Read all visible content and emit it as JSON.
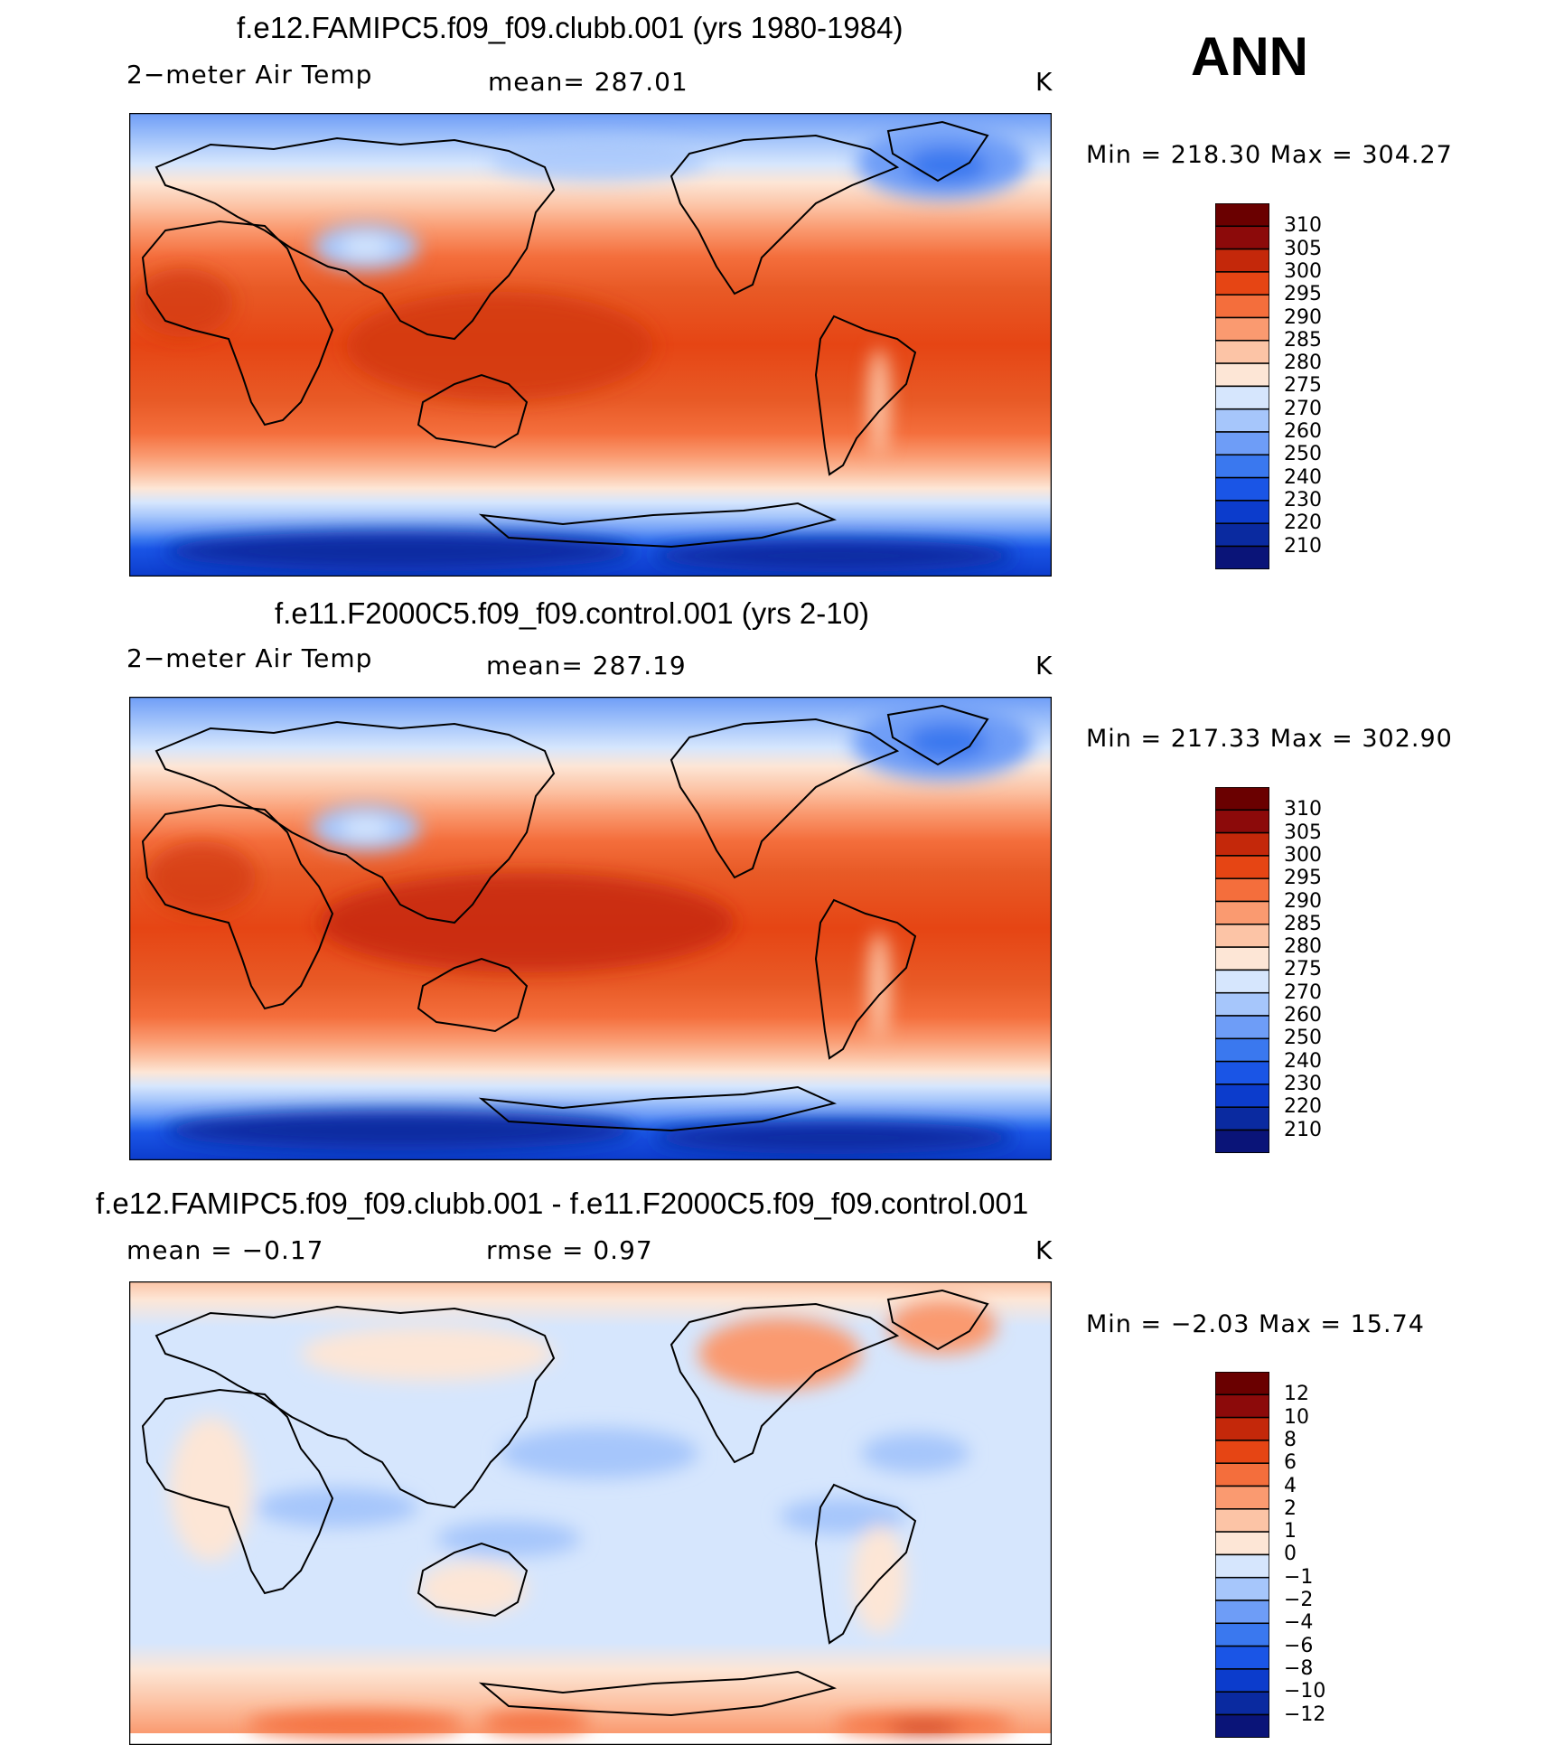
{
  "season": "ANN",
  "panels": [
    {
      "title": "f.e12.FAMIPC5.f09_f09.clubb.001 (yrs 1980-1984)",
      "left_label": "2−meter Air Temp",
      "mid_label": "mean=  287.01",
      "units": "K",
      "minmax": "Min  =  218.30  Max  =  304.27",
      "colorbar": {
        "colors": [
          "#0a1478",
          "#0a2aa0",
          "#0c3ccc",
          "#1a55e6",
          "#3a78ef",
          "#6e9df7",
          "#a6c6fb",
          "#d6e6fd",
          "#fde6d6",
          "#fcc4a6",
          "#fa9a70",
          "#f46e3c",
          "#e64514",
          "#c4280a",
          "#8c0a0a"
        ],
        "ticks": [
          "210",
          "220",
          "230",
          "240",
          "250",
          "260",
          "270",
          "275",
          "280",
          "285",
          "290",
          "295",
          "300",
          "305",
          "310"
        ]
      }
    },
    {
      "title": "f.e11.F2000C5.f09_f09.control.001 (yrs 2-10)",
      "left_label": "2−meter Air Temp",
      "mid_label": "mean=  287.19",
      "units": "K",
      "minmax": "Min  =  217.33  Max  =  302.90",
      "colorbar": {
        "colors": [
          "#0a1478",
          "#0a2aa0",
          "#0c3ccc",
          "#1a55e6",
          "#3a78ef",
          "#6e9df7",
          "#a6c6fb",
          "#d6e6fd",
          "#fde6d6",
          "#fcc4a6",
          "#fa9a70",
          "#f46e3c",
          "#e64514",
          "#c4280a",
          "#8c0a0a"
        ],
        "ticks": [
          "210",
          "220",
          "230",
          "240",
          "250",
          "260",
          "270",
          "275",
          "280",
          "285",
          "290",
          "295",
          "300",
          "305",
          "310"
        ]
      }
    },
    {
      "title": "f.e12.FAMIPC5.f09_f09.clubb.001 - f.e11.F2000C5.f09_f09.control.001",
      "left_label": "mean  =    −0.17",
      "mid_label": "rmse  =     0.97",
      "units": "K",
      "minmax": "Min  =    −2.03  Max  =    15.74",
      "colorbar": {
        "colors": [
          "#0a1478",
          "#0a2aa0",
          "#0c3ccc",
          "#1a55e6",
          "#3a78ef",
          "#6e9df7",
          "#a6c6fb",
          "#d6e6fd",
          "#fde6d6",
          "#fcc4a6",
          "#fa9a70",
          "#f46e3c",
          "#e64514",
          "#c4280a",
          "#8c0a0a"
        ],
        "ticks": [
          "−12",
          "−10",
          "−8",
          "−6",
          "−4",
          "−2",
          "−1",
          "0",
          "1",
          "2",
          "4",
          "6",
          "8",
          "10",
          "12"
        ]
      }
    }
  ]
}
